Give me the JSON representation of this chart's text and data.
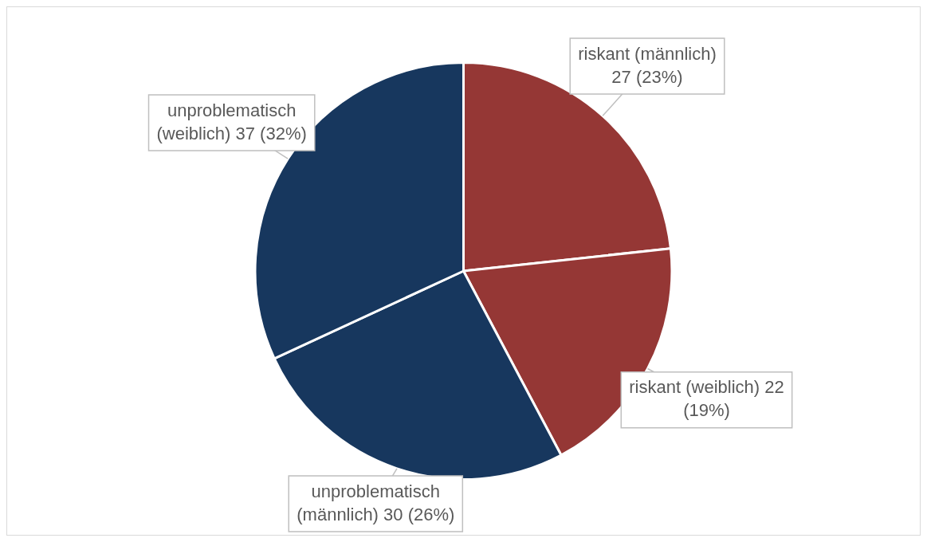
{
  "chart_data": {
    "type": "pie",
    "categories": [
      "riskant (männlich)",
      "riskant (weiblich)",
      "unproblematisch (männlich)",
      "unproblematisch (weiblich)"
    ],
    "values": [
      27,
      22,
      30,
      37
    ],
    "value_labels": [
      "27 (23%)",
      "22 (19%)",
      "30 (26%)",
      "37 (32%)"
    ],
    "colors": [
      "#953735",
      "#953735",
      "#17375e",
      "#17375e"
    ],
    "legend": false
  }
}
